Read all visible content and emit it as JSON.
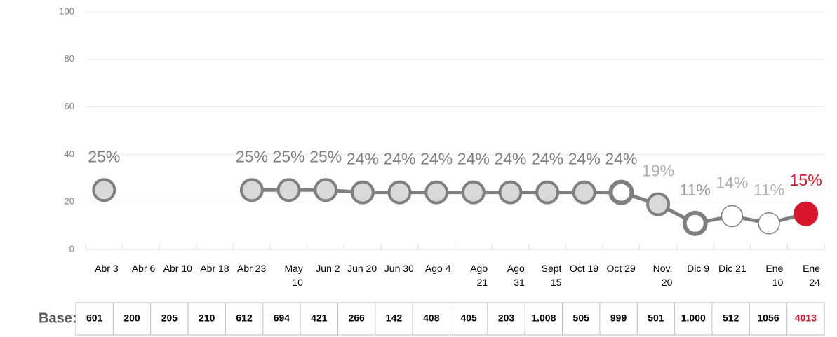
{
  "chart_data": {
    "type": "line",
    "categories": [
      "Abr 3",
      "Abr 6",
      "Abr 10",
      "Abr 18",
      "Abr 23",
      "May 10",
      "Jun 2",
      "Jun 20",
      "Jun 30",
      "Ago 4",
      "Ago 21",
      "Ago 31",
      "Sept 15",
      "Oct 19",
      "Oct 29",
      "Nov. 20",
      "Dic 9",
      "Dic 21",
      "Ene 10",
      "Ene 24"
    ],
    "series": [
      {
        "color": "#7f7f7f",
        "values": [
          25,
          null,
          null,
          null,
          25,
          25,
          25,
          24,
          24,
          24,
          24,
          24,
          24,
          24,
          24,
          19,
          11,
          14,
          11,
          15
        ],
        "value_labels": [
          "25%",
          null,
          null,
          null,
          "25%",
          "25%",
          "25%",
          "24%",
          "24%",
          "24%",
          "24%",
          "24%",
          "24%",
          "24%",
          "24%",
          "19%",
          "11%",
          "14%",
          "11%",
          "15%"
        ],
        "label_colors": [
          "#7f7f7f",
          null,
          null,
          null,
          "#7f7f7f",
          "#7f7f7f",
          "#7f7f7f",
          "#7f7f7f",
          "#7f7f7f",
          "#7f7f7f",
          "#7f7f7f",
          "#7f7f7f",
          "#7f7f7f",
          "#7f7f7f",
          "#7f7f7f",
          "#b0b0b0",
          "#9a9a9a",
          "#b0b0b0",
          "#b0b0b0",
          "#d7152b"
        ],
        "marker_fills": [
          "#d9d9d9",
          null,
          null,
          null,
          "#d9d9d9",
          "#d9d9d9",
          "#d9d9d9",
          "#d9d9d9",
          "#d9d9d9",
          "#d9d9d9",
          "#d9d9d9",
          "#d9d9d9",
          "#d9d9d9",
          "#d9d9d9",
          "#ffffff",
          "#d9d9d9",
          "#ffffff",
          "#ffffff",
          "#ffffff",
          "#d7152b"
        ]
      }
    ],
    "ylim": [
      0,
      100
    ],
    "yticks": [
      0,
      20,
      40,
      60,
      80,
      100
    ],
    "grid": true,
    "table": {
      "label": "Base:",
      "cells": [
        "601",
        "200",
        "205",
        "210",
        "612",
        "694",
        "421",
        "266",
        "142",
        "408",
        "405",
        "203",
        "1.008",
        "505",
        "999",
        "501",
        "1.000",
        "512",
        "1056",
        "4013"
      ],
      "highlight_color": "#d7152b"
    }
  }
}
